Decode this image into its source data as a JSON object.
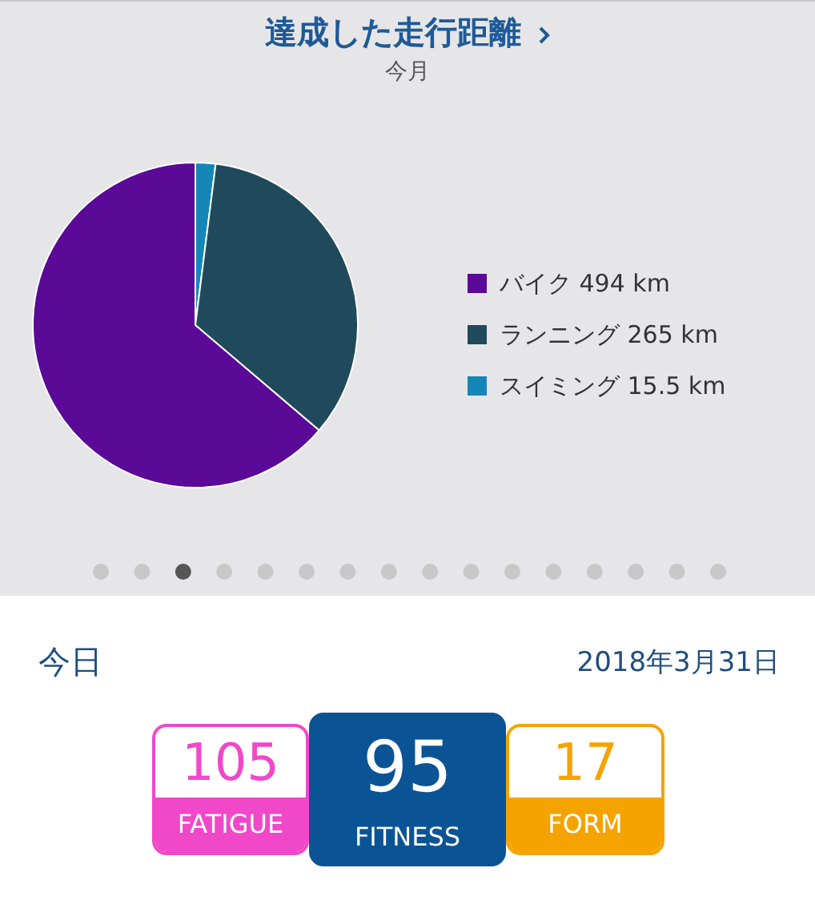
{
  "chart_data": [
    {
      "type": "pie",
      "title": "達成した走行距離",
      "subtitle": "今月",
      "categories": [
        "バイク",
        "ランニング",
        "スイミング"
      ],
      "values": [
        494,
        265,
        15.5
      ],
      "value_labels": [
        "494 km",
        "265 km",
        "15.5 km"
      ],
      "colors": [
        "#5a0a96",
        "#1f4a5c",
        "#1487b8"
      ],
      "legend": "right"
    },
    {
      "type": "other",
      "title": "今日",
      "subtitle": "2018年3月31日",
      "categories": [
        "FATIGUE",
        "FITNESS",
        "FORM"
      ],
      "values": [
        105,
        95,
        17
      ],
      "data_labels": true,
      "colors": [
        "#f048c8",
        "#0a5496",
        "#f5a300"
      ]
    }
  ]
}
